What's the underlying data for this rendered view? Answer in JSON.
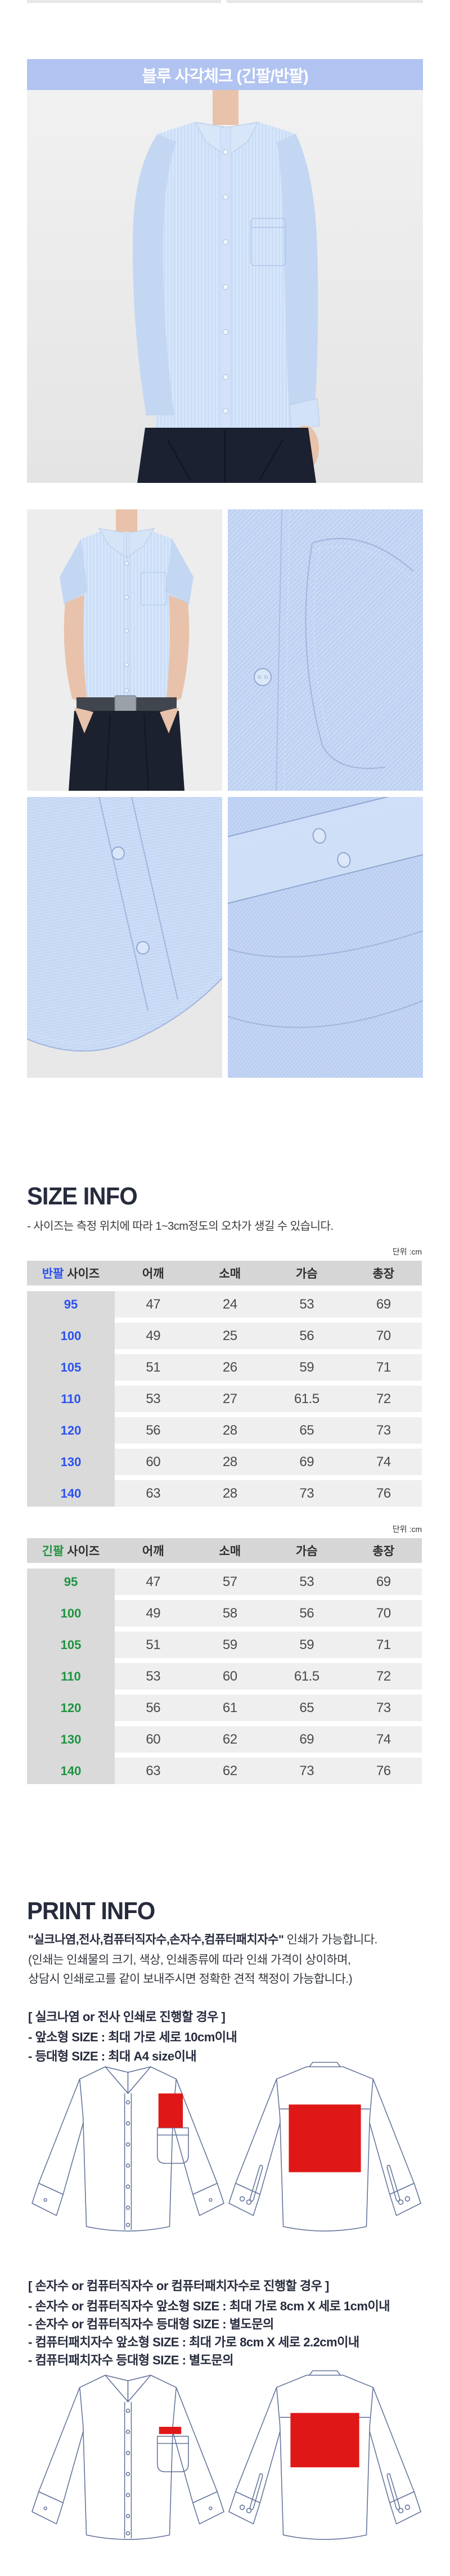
{
  "banner": {
    "title": "블루 사각체크 (긴팔/반팔)"
  },
  "size_info": {
    "heading": "SIZE INFO",
    "note": "- 사이즈는 측정 위치에 따라 1~3cm정도의 오차가 생길 수 있습니다.",
    "unit_label": "단위 :cm",
    "size_suffix": "사이즈",
    "columns": [
      "어깨",
      "소매",
      "가슴",
      "총장"
    ],
    "tables": [
      {
        "type_label": "반팔",
        "accent": "#2b51ee",
        "rows": [
          {
            "size": "95",
            "values": [
              "47",
              "24",
              "53",
              "69"
            ]
          },
          {
            "size": "100",
            "values": [
              "49",
              "25",
              "56",
              "70"
            ]
          },
          {
            "size": "105",
            "values": [
              "51",
              "26",
              "59",
              "71"
            ]
          },
          {
            "size": "110",
            "values": [
              "53",
              "27",
              "61.5",
              "72"
            ]
          },
          {
            "size": "120",
            "values": [
              "56",
              "28",
              "65",
              "73"
            ]
          },
          {
            "size": "130",
            "values": [
              "60",
              "28",
              "69",
              "74"
            ]
          },
          {
            "size": "140",
            "values": [
              "63",
              "28",
              "73",
              "76"
            ]
          }
        ]
      },
      {
        "type_label": "긴팔",
        "accent": "#1d9440",
        "rows": [
          {
            "size": "95",
            "values": [
              "47",
              "57",
              "53",
              "69"
            ]
          },
          {
            "size": "100",
            "values": [
              "49",
              "58",
              "56",
              "70"
            ]
          },
          {
            "size": "105",
            "values": [
              "51",
              "59",
              "59",
              "71"
            ]
          },
          {
            "size": "110",
            "values": [
              "53",
              "60",
              "61.5",
              "72"
            ]
          },
          {
            "size": "120",
            "values": [
              "56",
              "61",
              "65",
              "73"
            ]
          },
          {
            "size": "130",
            "values": [
              "60",
              "62",
              "69",
              "74"
            ]
          },
          {
            "size": "140",
            "values": [
              "63",
              "62",
              "73",
              "76"
            ]
          }
        ]
      }
    ]
  },
  "print_info": {
    "heading": "PRINT INFO",
    "intro_strong": "\"실크나염,전사,컴퓨터직자수,손자수,컴퓨터패치자수\"",
    "intro_rest": " 인쇄가 가능합니다.",
    "intro_line2": "(인쇄는 인쇄물의 크기, 색상, 인쇄종류에 따라 인쇄 가격이 상이하며,",
    "intro_line3": "상담시 인쇄로고를 같이 보내주시면 정확한 견적 책정이 가능합니다.)",
    "section1": {
      "heading": "[ 실크나염 or 전사 인쇄로 진행할 경우 ]",
      "items": [
        "- 앞소형 SIZE : 최대 가로 세로 10cm이내",
        "- 등대형 SIZE : 최대 A4 size이내"
      ]
    },
    "section2": {
      "heading": "[ 손자수 or 컴퓨터직자수 or 컴퓨터패치자수로 진행할 경우 ]",
      "items": [
        "- 손자수 or 컴퓨터직자수 앞소형 SIZE : 최대 가로 8cm X 세로 1cm이내",
        "- 손자수 or 컴퓨터직자수 등대형 SIZE : 별도문의",
        "- 컴퓨터패치자수 앞소형 SIZE : 최대 가로 8cm X 세로 2.2cm이내",
        "- 컴퓨터패치자수 등대형 SIZE : 별도문의"
      ]
    }
  },
  "colors": {
    "banner_bg": "#b1c3f0",
    "accent_blue": "#2b51ee",
    "accent_green": "#1d9440",
    "print_area_red": "#e01717",
    "heading_text": "#262b3d",
    "table_header_bg": "#d6d6d6",
    "size_column_bg": "#dadada",
    "row_band_bg": "#efefef"
  }
}
